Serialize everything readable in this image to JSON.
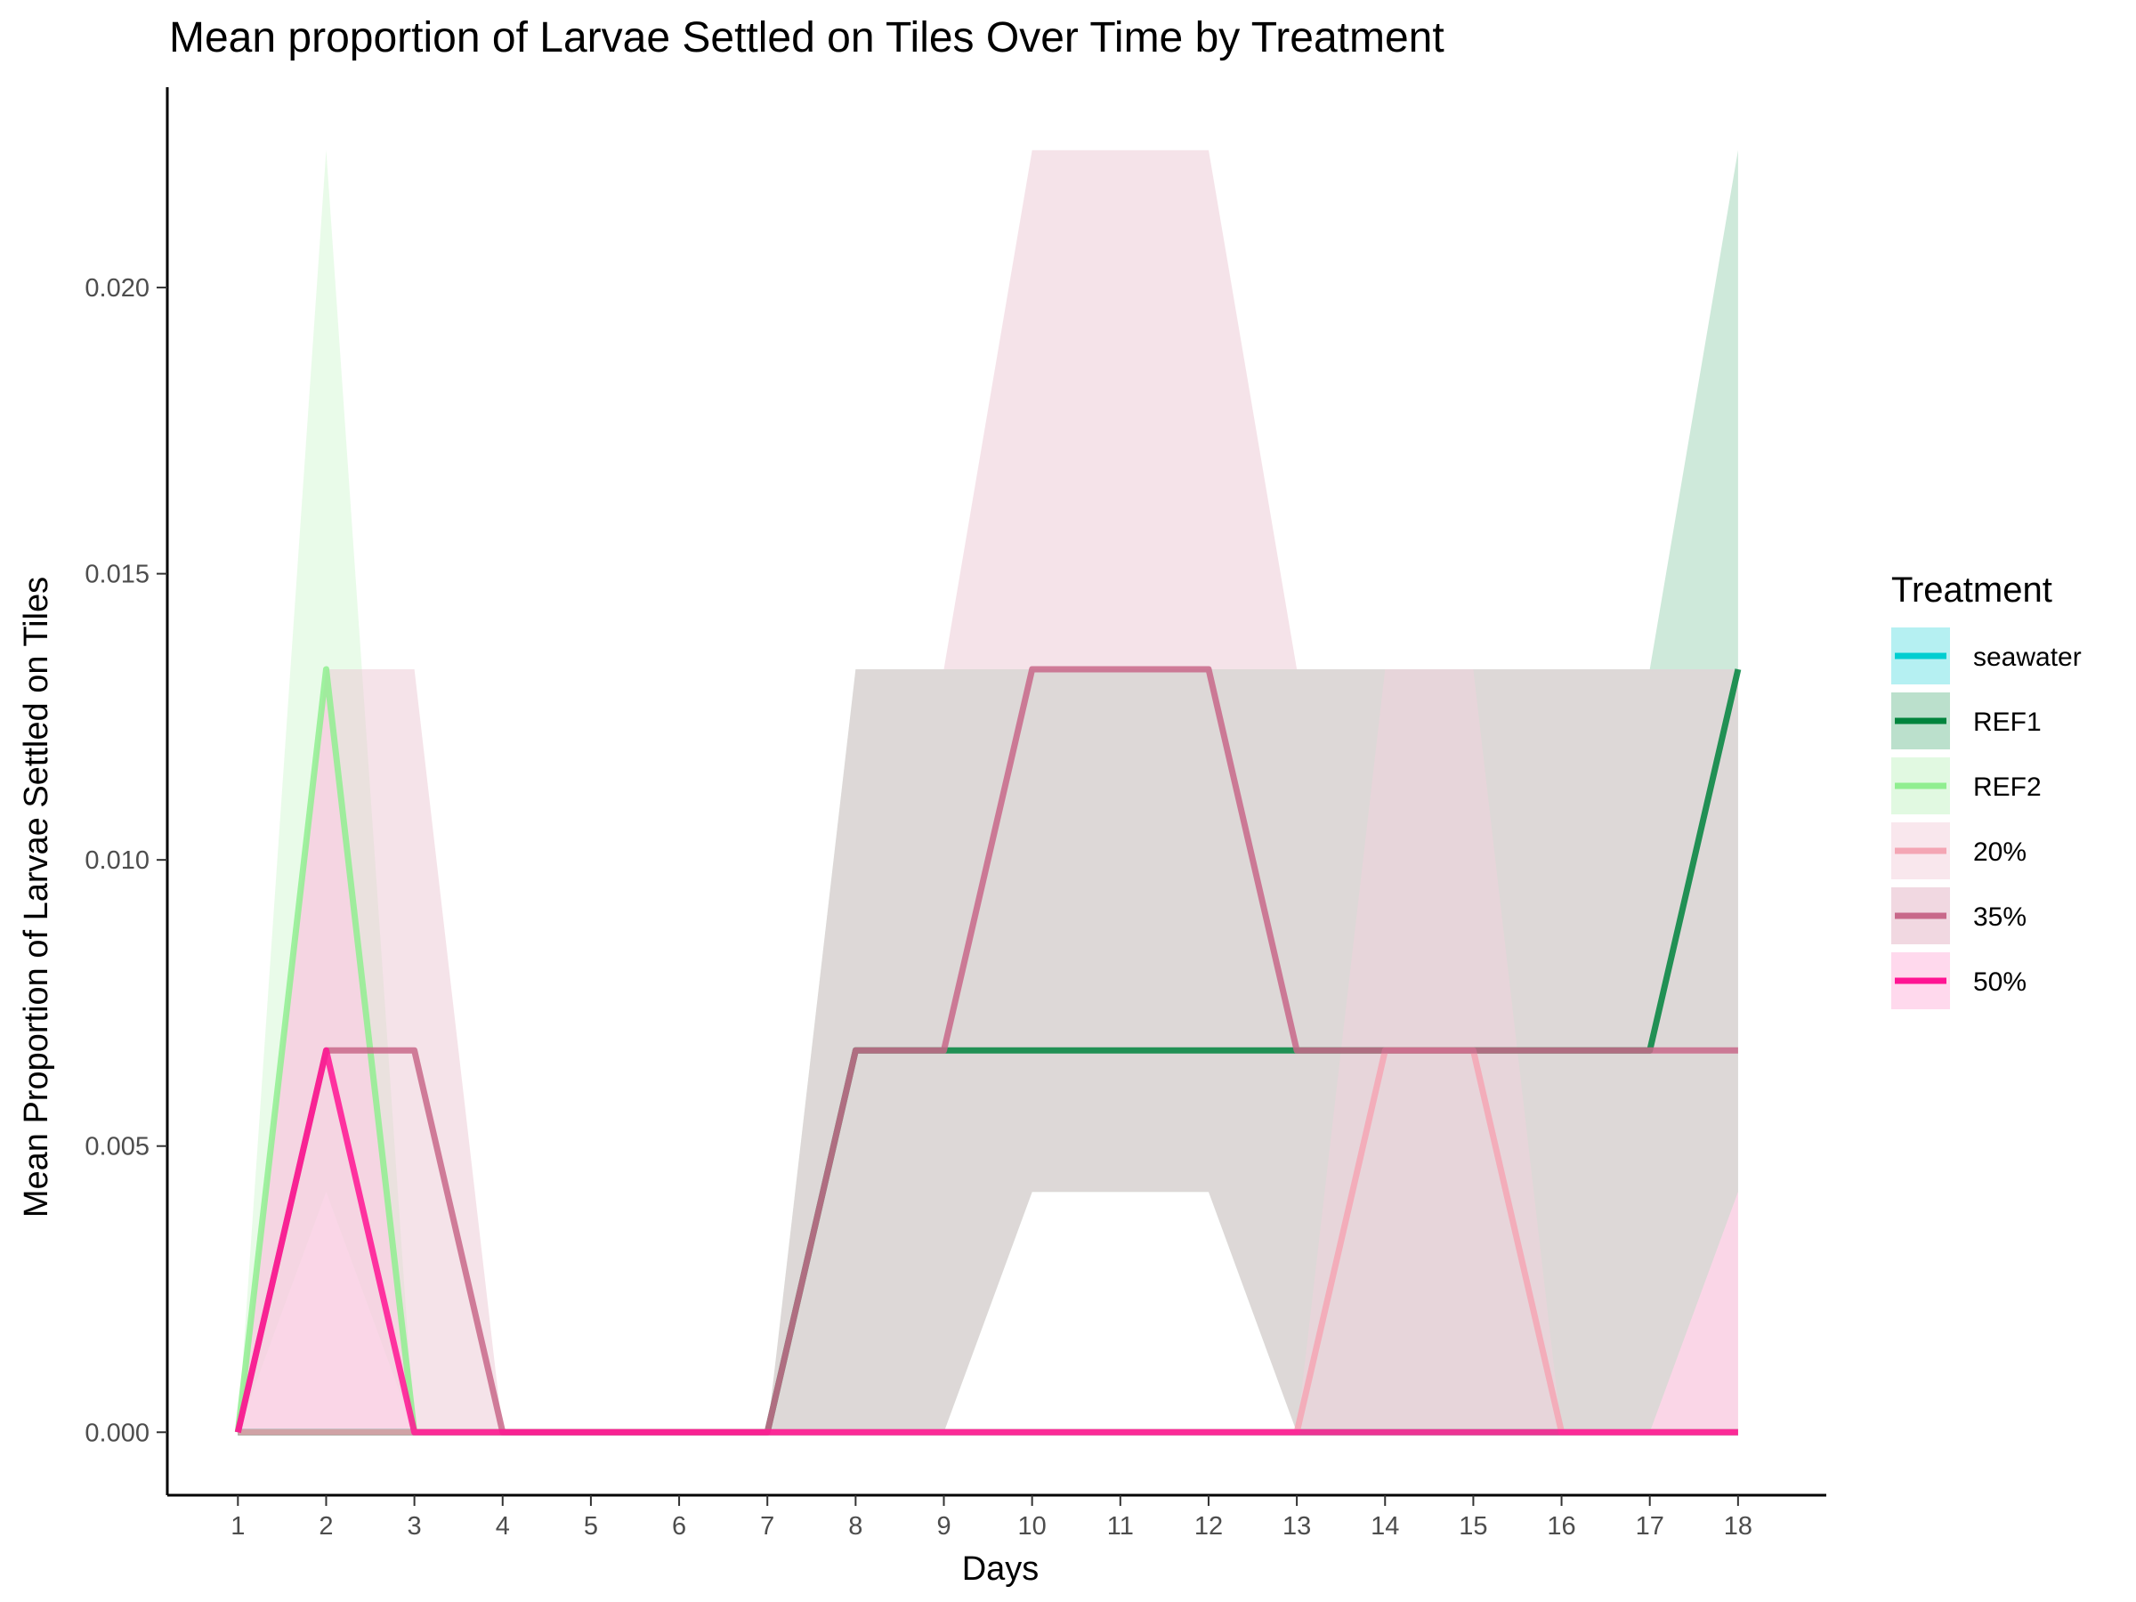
{
  "chart_data": {
    "type": "line",
    "title": "Mean proportion of Larvae Settled on Tiles Over Time by Treatment",
    "xlabel": "Days",
    "ylabel": "Mean Proportion of Larvae Settled on Tiles",
    "x": [
      1,
      2,
      3,
      4,
      5,
      6,
      7,
      8,
      9,
      10,
      11,
      12,
      13,
      14,
      15,
      16,
      17,
      18
    ],
    "x_ticks": [
      "1",
      "2",
      "3",
      "4",
      "5",
      "6",
      "7",
      "8",
      "9",
      "10",
      "11",
      "12",
      "13",
      "14",
      "15",
      "16",
      "17",
      "18"
    ],
    "y_ticks": [
      "0.000",
      "0.005",
      "0.010",
      "0.015",
      "0.020"
    ],
    "y_tick_values": [
      0,
      0.005,
      0.01,
      0.015,
      0.02
    ],
    "xlim": [
      0.2,
      19.0
    ],
    "ylim": [
      -0.0011,
      0.0235
    ],
    "grid": false,
    "legend": {
      "title": "Treatment",
      "placement": "right"
    },
    "series": [
      {
        "name": "seawater",
        "color": "#00CED1",
        "fill_color": "#96EAEC",
        "values": [
          0,
          0,
          0,
          0,
          0,
          0,
          0,
          0,
          0,
          0,
          0,
          0,
          0,
          0,
          0,
          0,
          0,
          0
        ],
        "lower": [
          0,
          0,
          0,
          0,
          0,
          0,
          0,
          0,
          0,
          0,
          0,
          0,
          0,
          0,
          0,
          0,
          0,
          0
        ],
        "upper": [
          0,
          0,
          0,
          0,
          0,
          0,
          0,
          0,
          0,
          0,
          0,
          0,
          0,
          0,
          0,
          0,
          0,
          0
        ]
      },
      {
        "name": "REF1",
        "color": "#00843D",
        "fill_color": "#9ED3B6",
        "values": [
          0,
          0,
          0,
          0,
          0,
          0,
          0,
          0.00667,
          0.00667,
          0.00667,
          0.00667,
          0.00667,
          0.00667,
          0.00667,
          0.00667,
          0.00667,
          0.00667,
          0.01333
        ],
        "lower": [
          0,
          0,
          0,
          0,
          0,
          0,
          0,
          0,
          0,
          0.0042,
          0.0042,
          0.0042,
          0,
          0,
          0,
          0,
          0,
          0.0042
        ],
        "upper": [
          0,
          0,
          0,
          0,
          0,
          0,
          0,
          0.01333,
          0.01333,
          0.01333,
          0.01333,
          0.01333,
          0.01333,
          0.01333,
          0.01333,
          0.01333,
          0.01333,
          0.0224
        ]
      },
      {
        "name": "REF2",
        "color": "#90EE90",
        "fill_color": "#D4F7D4",
        "values": [
          0,
          0.01333,
          0,
          0,
          0,
          0,
          0,
          0,
          0,
          0,
          0,
          0,
          0,
          0,
          0,
          0,
          0,
          0
        ],
        "lower": [
          0,
          0.0042,
          0,
          0,
          0,
          0,
          0,
          0,
          0,
          0,
          0,
          0,
          0,
          0,
          0,
          0,
          0,
          0
        ],
        "upper": [
          0,
          0.0224,
          0,
          0,
          0,
          0,
          0,
          0,
          0,
          0,
          0,
          0,
          0,
          0,
          0,
          0,
          0,
          0
        ]
      },
      {
        "name": "20%",
        "color": "#F4A6B4",
        "fill_color": "#F7DDE5",
        "values": [
          0,
          0,
          0,
          0,
          0,
          0,
          0,
          0,
          0,
          0,
          0,
          0,
          0,
          0.00667,
          0.00667,
          0,
          0,
          0
        ],
        "lower": [
          0,
          0,
          0,
          0,
          0,
          0,
          0,
          0,
          0,
          0,
          0,
          0,
          0,
          0,
          0,
          0,
          0,
          0
        ],
        "upper": [
          0,
          0,
          0,
          0,
          0,
          0,
          0,
          0,
          0,
          0,
          0,
          0,
          0,
          0.01333,
          0.01333,
          0,
          0,
          0
        ]
      },
      {
        "name": "35%",
        "color": "#C8688A",
        "fill_color": "#EBC7D4",
        "values": [
          0,
          0.00667,
          0.00667,
          0,
          0,
          0,
          0,
          0.00667,
          0.00667,
          0.01333,
          0.01333,
          0.01333,
          0.00667,
          0.00667,
          0.00667,
          0.00667,
          0.00667,
          0.00667
        ],
        "lower": [
          0,
          0,
          0,
          0,
          0,
          0,
          0,
          0,
          0,
          0.0042,
          0.0042,
          0.0042,
          0,
          0,
          0,
          0,
          0,
          0
        ],
        "upper": [
          0,
          0.01333,
          0.01333,
          0,
          0,
          0,
          0,
          0.01333,
          0.01333,
          0.0224,
          0.0224,
          0.0224,
          0.01333,
          0.01333,
          0.01333,
          0.01333,
          0.01333,
          0.01333
        ]
      },
      {
        "name": "50%",
        "color": "#FF1493",
        "fill_color": "#FFC9E5",
        "values": [
          0,
          0.00667,
          0,
          0,
          0,
          0,
          0,
          0,
          0,
          0,
          0,
          0,
          0,
          0,
          0,
          0,
          0,
          0
        ],
        "lower": [
          0,
          0,
          0,
          0,
          0,
          0,
          0,
          0,
          0,
          0,
          0,
          0,
          0,
          0,
          0,
          0,
          0,
          0
        ],
        "upper": [
          0,
          0.01333,
          0,
          0,
          0,
          0,
          0,
          0,
          0,
          0,
          0,
          0,
          0,
          0,
          0,
          0,
          0,
          0.0042
        ]
      }
    ]
  }
}
